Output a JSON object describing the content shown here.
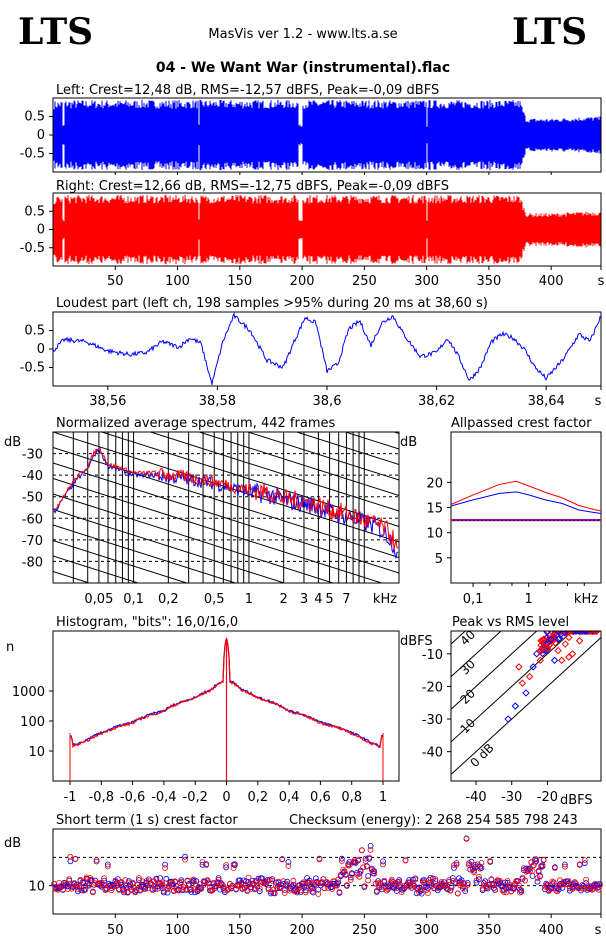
{
  "header": {
    "logo_left": "LTS",
    "logo_right": "LTS",
    "app_title": "MasVis ver 1.2 - www.lts.a.se",
    "file_title": "04 - We Want War (instrumental).flac"
  },
  "colors": {
    "left": "#0000ff",
    "right": "#ff0000"
  },
  "chart_data": [
    {
      "type": "line",
      "name": "left-waveform",
      "title": "Left: Crest=12,48 dB, RMS=-12,57 dBFS, Peak=-0,09 dBFS",
      "y_ticks": [
        "0.5",
        "0",
        "-0.5"
      ],
      "ylim": [
        -1,
        1
      ],
      "xlim": [
        0,
        440
      ],
      "envelope": {
        "x": [
          0,
          10,
          50,
          100,
          150,
          200,
          250,
          300,
          350,
          375,
          380,
          400,
          430,
          440
        ],
        "y": [
          0.92,
          0.95,
          0.95,
          0.95,
          0.95,
          0.95,
          0.95,
          0.95,
          0.95,
          0.95,
          0.45,
          0.45,
          0.5,
          0.5
        ]
      }
    },
    {
      "type": "line",
      "name": "right-waveform",
      "title": "Right: Crest=12,66 dB, RMS=-12,75 dBFS, Peak=-0,09 dBFS",
      "y_ticks": [
        "0.5",
        "0",
        "-0.5"
      ],
      "ylim": [
        -1,
        1
      ],
      "xlim": [
        0,
        440
      ],
      "x_ticks": [
        "50",
        "100",
        "150",
        "200",
        "250",
        "300",
        "350",
        "400",
        "s"
      ],
      "envelope": {
        "x": [
          0,
          10,
          50,
          100,
          150,
          200,
          250,
          300,
          350,
          375,
          380,
          400,
          430,
          440
        ],
        "y": [
          0.9,
          0.95,
          0.95,
          0.95,
          0.95,
          0.95,
          0.95,
          0.95,
          0.95,
          0.95,
          0.45,
          0.45,
          0.5,
          0.5
        ]
      }
    },
    {
      "type": "line",
      "name": "loudest-part",
      "title": "Loudest part (left  ch, 198 samples >95% during 20 ms at 38,60 s)",
      "y_ticks": [
        "0.5",
        "0",
        "-0.5"
      ],
      "ylim": [
        -1,
        1
      ],
      "xlim": [
        38.55,
        38.65
      ],
      "x_ticks": [
        "38,56",
        "38,58",
        "38,6",
        "38,62",
        "38,64",
        "s"
      ],
      "x": [
        38.55,
        38.552,
        38.556,
        38.56,
        38.564,
        38.567,
        38.57,
        38.573,
        38.575,
        38.577,
        38.579,
        38.581,
        38.583,
        38.586,
        38.589,
        38.592,
        38.594,
        38.596,
        38.598,
        38.6,
        38.602,
        38.604,
        38.606,
        38.608,
        38.61,
        38.612,
        38.614,
        38.617,
        38.62,
        38.622,
        38.624,
        38.626,
        38.628,
        38.63,
        38.632,
        38.634,
        38.636,
        38.638,
        38.64,
        38.643,
        38.646,
        38.648,
        38.65
      ],
      "y": [
        -0.05,
        0.25,
        0.2,
        -0.05,
        -0.15,
        -0.1,
        0.2,
        0.05,
        0.3,
        0.15,
        -0.95,
        0.2,
        0.9,
        0.5,
        -0.3,
        -0.5,
        0.2,
        0.85,
        0.7,
        -0.6,
        -0.4,
        0.55,
        0.75,
        0.1,
        0.7,
        0.9,
        0.4,
        -0.2,
        -0.1,
        0.3,
        -0.2,
        -0.85,
        -0.5,
        0.2,
        0.4,
        0.3,
        0.0,
        -0.5,
        -0.8,
        -0.3,
        0.4,
        0.2,
        0.9
      ]
    },
    {
      "type": "line",
      "name": "spectrum",
      "title": "Normalized average spectrum, 442 frames",
      "ylabel": "dB",
      "y_ticks": [
        "-30",
        "-40",
        "-50",
        "-60",
        "-70",
        "-80"
      ],
      "ylim": [
        -90,
        -20
      ],
      "x_scale": "log",
      "xlim": [
        0.02,
        20
      ],
      "x_ticks": [
        "0,05",
        "0,1",
        "0,2",
        "0,5",
        "1",
        "2",
        "3",
        "4",
        "5",
        "7",
        "kHz"
      ],
      "x": [
        0.02,
        0.025,
        0.03,
        0.035,
        0.04,
        0.045,
        0.05,
        0.06,
        0.08,
        0.1,
        0.15,
        0.2,
        0.3,
        0.5,
        0.7,
        1,
        1.5,
        2,
        3,
        4,
        5,
        7,
        10,
        13,
        16,
        18,
        20
      ],
      "series": [
        {
          "color": "#0000ff",
          "values": [
            -58,
            -50,
            -44,
            -40,
            -37,
            -31,
            -28,
            -36,
            -38,
            -40,
            -40,
            -41,
            -42,
            -44,
            -46,
            -48,
            -49,
            -52,
            -53,
            -55,
            -57,
            -59,
            -62,
            -64,
            -68,
            -72,
            -80
          ]
        },
        {
          "color": "#ff0000",
          "values": [
            -57,
            -49,
            -43,
            -39,
            -36,
            -30,
            -27,
            -35,
            -37,
            -39,
            -39,
            -40,
            -41,
            -43,
            -45,
            -47,
            -48,
            -51,
            -52,
            -54,
            -56,
            -58,
            -61,
            -63,
            -66,
            -70,
            -78
          ]
        }
      ]
    },
    {
      "type": "line",
      "name": "allpassed-crest-factor",
      "title": "Allpassed crest factor",
      "ylabel": "dB",
      "y_ticks": [
        "20",
        "15",
        "10",
        "5"
      ],
      "ylim": [
        0,
        30
      ],
      "x_scale": "log",
      "xlim": [
        0.04,
        20
      ],
      "x_ticks": [
        "0,1",
        "1",
        "kHz"
      ],
      "x": [
        0.04,
        0.1,
        0.3,
        0.6,
        1,
        2,
        4,
        8,
        15,
        20
      ],
      "series": [
        {
          "color": "#0000ff",
          "values": [
            15.3,
            16.5,
            17.8,
            18.1,
            17.5,
            16.5,
            15.8,
            14.5,
            14.0,
            13.8
          ]
        },
        {
          "color": "#ff0000",
          "values": [
            15.6,
            17.5,
            19.6,
            20.2,
            19.3,
            18.0,
            16.9,
            15.4,
            14.6,
            14.3
          ]
        }
      ],
      "reference_level": 12.5
    },
    {
      "type": "line",
      "name": "histogram",
      "title": "Histogram, \"bits\": 16,0/16,0",
      "ylabel": "n",
      "y_scale": "log",
      "y_ticks": [
        "1000",
        "100",
        "10"
      ],
      "ylim": [
        1,
        100000
      ],
      "xlim": [
        -1,
        1
      ],
      "x_ticks": [
        "-1",
        "-0,8",
        "-0,6",
        "-0,4",
        "-0,2",
        "0",
        "0,2",
        "0,4",
        "0,6",
        "0,8",
        "1"
      ],
      "x": [
        -1,
        -0.98,
        -0.9,
        -0.8,
        -0.6,
        -0.4,
        -0.2,
        -0.1,
        -0.02,
        0,
        0.02,
        0.1,
        0.2,
        0.4,
        0.6,
        0.8,
        0.9,
        0.98,
        1
      ],
      "series": [
        {
          "color": "#0000ff",
          "values": [
            40,
            15,
            22,
            40,
            90,
            220,
            600,
            1100,
            2200,
            60000,
            2200,
            1100,
            600,
            220,
            90,
            40,
            22,
            14,
            40
          ]
        },
        {
          "color": "#ff0000",
          "values": [
            40,
            14,
            20,
            38,
            85,
            210,
            580,
            1050,
            2100,
            60000,
            2100,
            1050,
            580,
            210,
            85,
            38,
            20,
            13,
            40
          ]
        }
      ]
    },
    {
      "type": "scatter",
      "name": "peak-vs-rms",
      "title": "Peak vs RMS level",
      "ylabel": "dBFS",
      "xlabel": "dBFS",
      "y_ticks": [
        "-10",
        "-20",
        "-30",
        "-40"
      ],
      "x_ticks": [
        "-40",
        "-30",
        "-20"
      ],
      "xlim": [
        -47,
        -5
      ],
      "ylim": [
        -49,
        -3
      ],
      "crest_lines": [
        "0 dB",
        "10",
        "20",
        "30",
        "40"
      ],
      "points": [
        {
          "x": -20,
          "y": -3,
          "c": "r"
        },
        {
          "x": -18,
          "y": -4,
          "c": "r"
        },
        {
          "x": -16,
          "y": -3,
          "c": "r"
        },
        {
          "x": -14,
          "y": -5,
          "c": "r"
        },
        {
          "x": -12,
          "y": -3,
          "c": "r"
        },
        {
          "x": -15,
          "y": -7,
          "c": "r"
        },
        {
          "x": -17,
          "y": -9,
          "c": "r"
        },
        {
          "x": -13,
          "y": -10,
          "c": "r"
        },
        {
          "x": -19,
          "y": -6,
          "c": "b"
        },
        {
          "x": -21,
          "y": -8,
          "c": "b"
        },
        {
          "x": -22,
          "y": -12,
          "c": "r"
        },
        {
          "x": -16,
          "y": -12,
          "c": "r"
        },
        {
          "x": -24,
          "y": -14,
          "c": "b"
        },
        {
          "x": -25,
          "y": -17,
          "c": "r"
        },
        {
          "x": -27,
          "y": -19,
          "c": "r"
        },
        {
          "x": -26,
          "y": -22,
          "c": "b"
        },
        {
          "x": -29,
          "y": -26,
          "c": "b"
        },
        {
          "x": -31,
          "y": -30,
          "c": "b"
        },
        {
          "x": -23,
          "y": -10,
          "c": "b"
        },
        {
          "x": -18,
          "y": -12,
          "c": "b"
        },
        {
          "x": -11,
          "y": -6,
          "c": "r"
        },
        {
          "x": -20,
          "y": -5,
          "c": "r"
        },
        {
          "x": -14,
          "y": -11,
          "c": "r"
        },
        {
          "x": -28,
          "y": -14,
          "c": "r"
        }
      ]
    },
    {
      "type": "scatter",
      "name": "short-term-crest",
      "title": "Short term (1 s) crest factor",
      "annotation": "Checksum (energy):  2 268 254 585 798 243",
      "ylabel": "dB",
      "y_ticks": [
        "10"
      ],
      "ylim": [
        0,
        30
      ],
      "xlim": [
        0,
        440
      ],
      "x_ticks": [
        "50",
        "100",
        "150",
        "200",
        "250",
        "300",
        "350",
        "400",
        "s"
      ],
      "reference_levels": [
        10,
        20
      ]
    }
  ]
}
